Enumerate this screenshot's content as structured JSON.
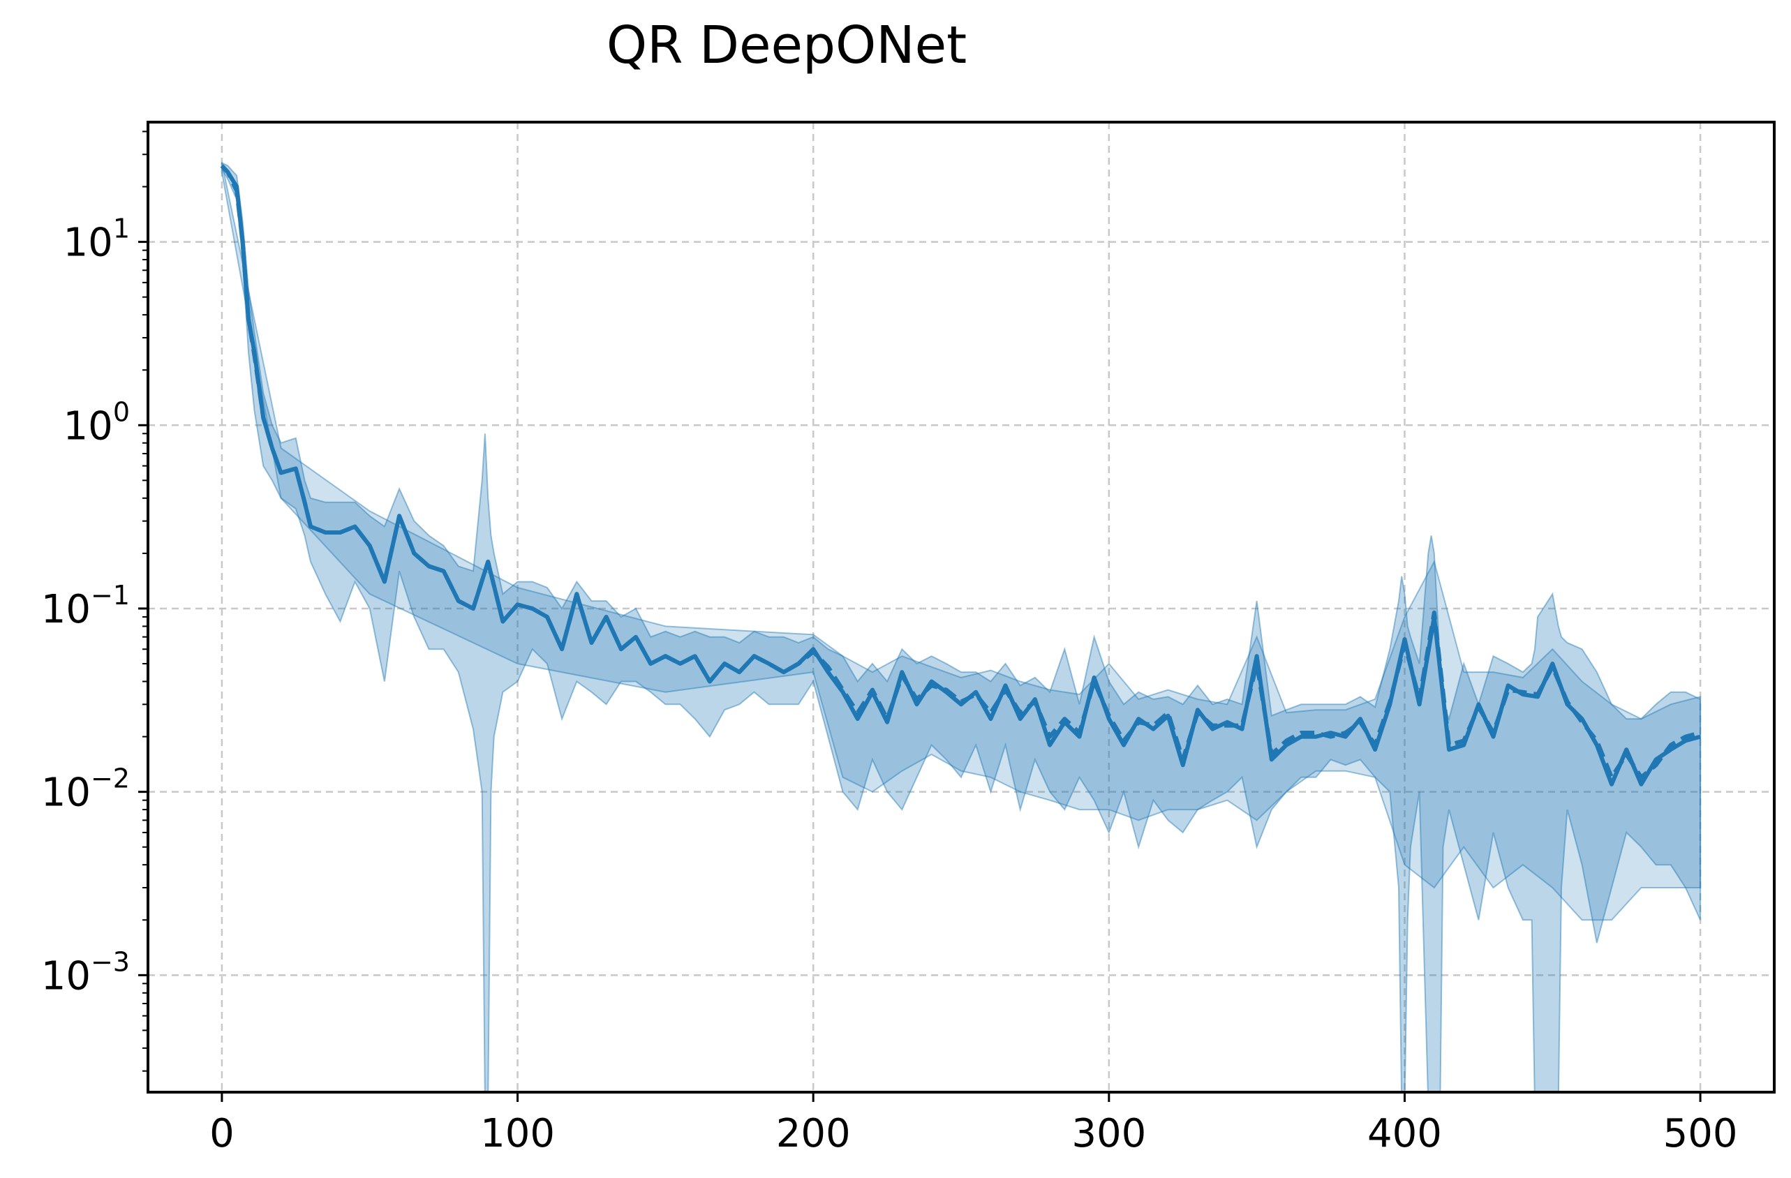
{
  "chart_data": {
    "type": "line",
    "title": "QR DeepONet",
    "xlabel": "",
    "ylabel": "",
    "y_scale": "log",
    "xlim": [
      -25,
      525
    ],
    "ylim": [
      0.00023,
      45
    ],
    "x_ticks": [
      0,
      100,
      200,
      300,
      400,
      500
    ],
    "x_tick_labels": [
      "0",
      "100",
      "200",
      "300",
      "400",
      "500"
    ],
    "y_ticks": [
      0.001,
      0.01,
      0.1,
      1,
      10
    ],
    "y_tick_labels": [
      {
        "base": "10",
        "exp": "−3"
      },
      {
        "base": "10",
        "exp": "−2"
      },
      {
        "base": "10",
        "exp": "−1"
      },
      {
        "base": "10",
        "exp": "0"
      },
      {
        "base": "10",
        "exp": "1"
      }
    ],
    "grid": true,
    "legend": "none",
    "color": "#1f77b4",
    "series": [
      {
        "style": "solid",
        "x": [
          0,
          2,
          5,
          7,
          9,
          11,
          14,
          17,
          20,
          25,
          28,
          30,
          35,
          40,
          45,
          50,
          55,
          60,
          65,
          70,
          75,
          80,
          85,
          90,
          95,
          100,
          105,
          110,
          115,
          120,
          125,
          130,
          135,
          140,
          145,
          150,
          155,
          160,
          165,
          170,
          175,
          180,
          185,
          190,
          195,
          200,
          205,
          210,
          215,
          220,
          225,
          230,
          235,
          240,
          245,
          250,
          255,
          260,
          265,
          270,
          275,
          280,
          285,
          290,
          295,
          300,
          305,
          310,
          315,
          320,
          325,
          330,
          335,
          340,
          345,
          350,
          355,
          360,
          365,
          370,
          375,
          380,
          385,
          390,
          395,
          400,
          405,
          410,
          415,
          420,
          425,
          430,
          435,
          440,
          445,
          450,
          455,
          460,
          465,
          470,
          475,
          480,
          485,
          490,
          495,
          500
        ],
        "y": [
          26,
          24,
          20,
          10,
          3.8,
          2.5,
          1.1,
          0.75,
          0.55,
          0.58,
          0.38,
          0.28,
          0.26,
          0.26,
          0.28,
          0.22,
          0.14,
          0.32,
          0.2,
          0.17,
          0.16,
          0.11,
          0.1,
          0.18,
          0.085,
          0.105,
          0.1,
          0.09,
          0.06,
          0.12,
          0.065,
          0.09,
          0.06,
          0.07,
          0.05,
          0.055,
          0.05,
          0.055,
          0.04,
          0.05,
          0.045,
          0.055,
          0.05,
          0.045,
          0.05,
          0.06,
          0.045,
          0.035,
          0.025,
          0.035,
          0.024,
          0.045,
          0.03,
          0.04,
          0.035,
          0.03,
          0.035,
          0.025,
          0.038,
          0.025,
          0.032,
          0.018,
          0.024,
          0.02,
          0.042,
          0.025,
          0.018,
          0.025,
          0.022,
          0.026,
          0.014,
          0.028,
          0.022,
          0.024,
          0.022,
          0.055,
          0.015,
          0.018,
          0.02,
          0.02,
          0.021,
          0.02,
          0.025,
          0.017,
          0.03,
          0.068,
          0.03,
          0.09,
          0.017,
          0.018,
          0.03,
          0.02,
          0.038,
          0.034,
          0.033,
          0.05,
          0.03,
          0.025,
          0.018,
          0.011,
          0.017,
          0.011,
          0.015,
          0.017,
          0.019,
          0.02
        ]
      },
      {
        "style": "dashed",
        "x": [
          0,
          2,
          5,
          7,
          9,
          11,
          14,
          17,
          20,
          25,
          28,
          30,
          35,
          40,
          45,
          50,
          55,
          60,
          65,
          70,
          75,
          80,
          85,
          90,
          95,
          100,
          105,
          110,
          115,
          120,
          125,
          130,
          135,
          140,
          145,
          150,
          155,
          160,
          165,
          170,
          175,
          180,
          185,
          190,
          195,
          200,
          205,
          210,
          215,
          220,
          225,
          230,
          235,
          240,
          245,
          250,
          255,
          260,
          265,
          270,
          275,
          280,
          285,
          290,
          295,
          300,
          305,
          310,
          315,
          320,
          325,
          330,
          335,
          340,
          345,
          350,
          355,
          360,
          365,
          370,
          375,
          380,
          385,
          390,
          395,
          400,
          405,
          410,
          415,
          420,
          425,
          430,
          435,
          440,
          445,
          450,
          455,
          460,
          465,
          470,
          475,
          480,
          485,
          490,
          495,
          500
        ],
        "y": [
          26,
          24,
          19,
          10,
          3.8,
          2.4,
          1.1,
          0.75,
          0.55,
          0.58,
          0.38,
          0.28,
          0.26,
          0.26,
          0.28,
          0.22,
          0.14,
          0.32,
          0.2,
          0.17,
          0.16,
          0.11,
          0.1,
          0.18,
          0.085,
          0.105,
          0.1,
          0.09,
          0.06,
          0.12,
          0.065,
          0.09,
          0.06,
          0.07,
          0.05,
          0.055,
          0.05,
          0.055,
          0.04,
          0.05,
          0.045,
          0.055,
          0.05,
          0.045,
          0.05,
          0.058,
          0.048,
          0.036,
          0.027,
          0.036,
          0.025,
          0.043,
          0.032,
          0.038,
          0.036,
          0.031,
          0.034,
          0.027,
          0.036,
          0.027,
          0.031,
          0.02,
          0.025,
          0.021,
          0.04,
          0.026,
          0.019,
          0.024,
          0.023,
          0.027,
          0.015,
          0.027,
          0.023,
          0.023,
          0.023,
          0.05,
          0.016,
          0.019,
          0.021,
          0.021,
          0.02,
          0.021,
          0.024,
          0.018,
          0.031,
          0.064,
          0.032,
          0.095,
          0.018,
          0.019,
          0.029,
          0.021,
          0.036,
          0.035,
          0.034,
          0.048,
          0.031,
          0.024,
          0.019,
          0.012,
          0.016,
          0.012,
          0.014,
          0.018,
          0.02,
          0.021
        ]
      }
    ],
    "bands": [
      {
        "opacity": 0.3,
        "x": [
          0,
          2,
          5,
          7,
          9,
          11,
          14,
          17,
          20,
          25,
          28,
          30,
          35,
          40,
          45,
          50,
          55,
          60,
          65,
          70,
          75,
          80,
          85,
          88,
          89,
          90,
          91,
          92,
          95,
          100,
          105,
          110,
          115,
          120,
          125,
          130,
          135,
          140,
          145,
          150,
          155,
          160,
          165,
          170,
          175,
          180,
          185,
          190,
          195,
          200,
          205,
          210,
          215,
          220,
          225,
          230,
          235,
          240,
          245,
          250,
          255,
          260,
          265,
          270,
          275,
          280,
          285,
          290,
          295,
          300,
          305,
          310,
          315,
          320,
          325,
          330,
          335,
          340,
          345,
          350,
          355,
          360,
          365,
          370,
          375,
          380,
          385,
          390,
          395,
          398,
          399,
          400,
          401,
          402,
          405,
          408,
          409,
          410,
          411,
          412,
          413,
          415,
          420,
          425,
          430,
          435,
          440,
          443,
          444,
          445,
          450,
          452,
          453,
          455,
          460,
          465,
          470,
          475,
          480,
          485,
          490,
          495,
          500
        ],
        "upper": [
          27,
          26,
          23,
          13,
          5.5,
          3.2,
          1.5,
          1.0,
          0.8,
          0.85,
          0.5,
          0.4,
          0.38,
          0.38,
          0.38,
          0.32,
          0.28,
          0.45,
          0.3,
          0.25,
          0.22,
          0.17,
          0.16,
          0.5,
          0.9,
          0.4,
          0.25,
          0.2,
          0.12,
          0.14,
          0.14,
          0.13,
          0.1,
          0.14,
          0.11,
          0.11,
          0.09,
          0.1,
          0.07,
          0.075,
          0.07,
          0.075,
          0.07,
          0.07,
          0.065,
          0.075,
          0.07,
          0.07,
          0.065,
          0.07,
          0.06,
          0.055,
          0.04,
          0.05,
          0.04,
          0.06,
          0.05,
          0.055,
          0.05,
          0.045,
          0.045,
          0.04,
          0.05,
          0.038,
          0.042,
          0.035,
          0.06,
          0.03,
          0.07,
          0.04,
          0.03,
          0.035,
          0.032,
          0.033,
          0.03,
          0.038,
          0.03,
          0.032,
          0.03,
          0.11,
          0.026,
          0.028,
          0.03,
          0.03,
          0.03,
          0.03,
          0.033,
          0.029,
          0.06,
          0.11,
          0.15,
          0.12,
          0.08,
          0.07,
          0.05,
          0.2,
          0.25,
          0.2,
          0.1,
          0.05,
          0.03,
          0.025,
          0.05,
          0.03,
          0.055,
          0.05,
          0.045,
          0.05,
          0.06,
          0.09,
          0.12,
          0.08,
          0.07,
          0.065,
          0.06,
          0.045,
          0.03,
          0.025,
          0.025,
          0.03,
          0.035,
          0.035,
          0.032
        ],
        "lower": [
          25,
          22,
          17,
          8,
          2.5,
          1.2,
          0.6,
          0.5,
          0.4,
          0.35,
          0.25,
          0.18,
          0.12,
          0.085,
          0.14,
          0.1,
          0.04,
          0.16,
          0.09,
          0.06,
          0.06,
          0.045,
          0.022,
          0.01,
          0.0002,
          0.0002,
          0.01,
          0.02,
          0.035,
          0.04,
          0.06,
          0.05,
          0.025,
          0.04,
          0.035,
          0.03,
          0.04,
          0.04,
          0.035,
          0.03,
          0.03,
          0.025,
          0.02,
          0.028,
          0.03,
          0.035,
          0.03,
          0.03,
          0.03,
          0.04,
          0.02,
          0.01,
          0.008,
          0.015,
          0.01,
          0.008,
          0.012,
          0.018,
          0.015,
          0.012,
          0.018,
          0.01,
          0.018,
          0.008,
          0.015,
          0.01,
          0.008,
          0.012,
          0.009,
          0.006,
          0.01,
          0.005,
          0.009,
          0.007,
          0.006,
          0.008,
          0.009,
          0.01,
          0.012,
          0.005,
          0.008,
          0.01,
          0.012,
          0.012,
          0.015,
          0.014,
          0.015,
          0.012,
          0.01,
          0.003,
          0.0002,
          0.0002,
          0.002,
          0.005,
          0.01,
          0.0002,
          0.0002,
          0.0002,
          0.0002,
          0.0002,
          0.005,
          0.008,
          0.004,
          0.002,
          0.006,
          0.003,
          0.002,
          0.002,
          0.0002,
          0.0002,
          0.0002,
          0.0002,
          0.003,
          0.008,
          0.004,
          0.0015,
          0.003,
          0.006,
          0.005,
          0.004,
          0.004,
          0.003,
          0.002
        ]
      },
      {
        "opacity": 0.22,
        "x": [
          0,
          20,
          50,
          100,
          150,
          200,
          210,
          220,
          230,
          240,
          250,
          260,
          270,
          280,
          290,
          300,
          310,
          320,
          330,
          340,
          350,
          360,
          370,
          380,
          390,
          400,
          410,
          420,
          430,
          440,
          450,
          460,
          470,
          480,
          490,
          500
        ],
        "upper": [
          27,
          0.75,
          0.34,
          0.13,
          0.08,
          0.072,
          0.055,
          0.045,
          0.055,
          0.048,
          0.042,
          0.046,
          0.04,
          0.036,
          0.034,
          0.05,
          0.032,
          0.036,
          0.032,
          0.03,
          0.07,
          0.027,
          0.028,
          0.028,
          0.032,
          0.09,
          0.18,
          0.045,
          0.045,
          0.042,
          0.06,
          0.04,
          0.03,
          0.025,
          0.03,
          0.033
        ],
        "lower": [
          24,
          0.4,
          0.12,
          0.05,
          0.035,
          0.045,
          0.012,
          0.01,
          0.013,
          0.016,
          0.013,
          0.012,
          0.01,
          0.009,
          0.008,
          0.008,
          0.007,
          0.008,
          0.008,
          0.009,
          0.007,
          0.01,
          0.013,
          0.013,
          0.012,
          0.004,
          0.003,
          0.005,
          0.003,
          0.004,
          0.003,
          0.002,
          0.002,
          0.003,
          0.003,
          0.003
        ]
      }
    ]
  }
}
